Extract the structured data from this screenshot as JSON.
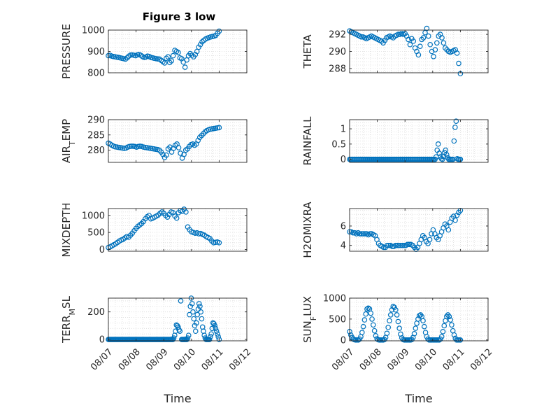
{
  "figure": {
    "title": "Figure 3 low",
    "colors": {
      "marker": "#0072BD",
      "axis": "#262626",
      "grid": "#dcdcdc",
      "background": "#ffffff"
    }
  },
  "chart_data": [
    {
      "type": "scatter",
      "ylabel": "PRESSURE",
      "xlim": [
        0,
        5
      ],
      "ylim": [
        800,
        1000
      ],
      "yticks": [
        800,
        900,
        1000
      ],
      "xticks_labels": [],
      "grid": "on",
      "x_start": 0.0,
      "x_end": 4.0,
      "y": [
        880,
        882,
        878,
        876,
        875,
        873,
        872,
        870,
        868,
        866,
        864,
        870,
        878,
        883,
        884,
        882,
        880,
        884,
        886,
        882,
        876,
        872,
        874,
        878,
        876,
        872,
        870,
        868,
        866,
        865,
        864,
        858,
        852,
        846,
        868,
        875,
        848,
        856,
        880,
        905,
        900,
        895,
        870,
        866,
        850,
        826,
        860,
        880,
        890,
        882,
        875,
        885,
        900,
        920,
        932,
        945,
        952,
        958,
        962,
        965,
        968,
        970,
        972,
        975,
        985,
        995
      ]
    },
    {
      "type": "scatter",
      "ylabel": "THETA",
      "xlim": [
        0,
        5
      ],
      "ylim": [
        287.5,
        292.5
      ],
      "yticks": [
        288,
        290,
        292
      ],
      "xticks_labels": [],
      "grid": "on",
      "x_start": 0.0,
      "x_end": 4.0,
      "y": [
        292.4,
        292.3,
        292.2,
        292.1,
        292.0,
        291.9,
        291.8,
        291.7,
        291.7,
        291.6,
        291.5,
        291.6,
        291.7,
        291.8,
        291.7,
        291.6,
        291.5,
        291.4,
        291.3,
        291.2,
        291.0,
        291.3,
        291.6,
        291.7,
        291.8,
        291.7,
        291.6,
        291.8,
        291.9,
        292.0,
        292.0,
        292.1,
        292.0,
        292.1,
        291.8,
        291.4,
        290.8,
        291.5,
        291.2,
        290.4,
        290.0,
        289.6,
        290.6,
        291.4,
        291.6,
        292.2,
        292.7,
        291.8,
        290.8,
        290.0,
        289.4,
        290.2,
        291.0,
        291.8,
        292.0,
        291.6,
        291.0,
        290.4,
        290.2,
        290.0,
        289.9,
        290.0,
        290.1,
        290.2,
        289.8,
        288.6,
        287.4
      ]
    },
    {
      "type": "scatter",
      "ylabel": "AIR_TEMP",
      "xlim": [
        0,
        5
      ],
      "ylim": [
        276,
        290
      ],
      "yticks": [
        280,
        285,
        290
      ],
      "xticks_labels": [],
      "grid": "on",
      "x_start": 0.0,
      "x_end": 4.0,
      "y": [
        282.3,
        282.0,
        281.6,
        281.3,
        281.1,
        281.0,
        280.9,
        280.8,
        280.7,
        280.6,
        280.7,
        281.0,
        281.2,
        281.3,
        281.3,
        281.2,
        281.0,
        281.2,
        281.3,
        281.2,
        281.0,
        280.9,
        280.8,
        280.7,
        280.6,
        280.5,
        280.4,
        280.3,
        280.2,
        280.0,
        279.4,
        278.6,
        277.6,
        278.4,
        280.4,
        281.0,
        279.4,
        280.6,
        281.6,
        282.0,
        280.8,
        279.0,
        277.4,
        278.6,
        280.0,
        280.4,
        281.2,
        281.8,
        282.0,
        281.6,
        282.0,
        283.2,
        284.2,
        284.8,
        285.4,
        286.0,
        286.4,
        286.7,
        286.9,
        287.0,
        287.1,
        287.2,
        287.3,
        287.4
      ]
    },
    {
      "type": "scatter",
      "ylabel": "RAINFALL",
      "xlim": [
        0,
        5
      ],
      "ylim": [
        -0.1,
        1.3
      ],
      "yticks": [
        0,
        0.5,
        1
      ],
      "xticks_labels": [],
      "grid": "on",
      "x_start": 0.0,
      "x_end": 4.0,
      "y": [
        0,
        0,
        0,
        0,
        0,
        0,
        0,
        0,
        0,
        0,
        0,
        0,
        0,
        0,
        0,
        0,
        0,
        0,
        0,
        0,
        0,
        0,
        0,
        0,
        0,
        0,
        0,
        0,
        0,
        0,
        0,
        0,
        0,
        0,
        0,
        0,
        0,
        0,
        0,
        0,
        0,
        0,
        0,
        0,
        0,
        0,
        0,
        0,
        0,
        0,
        0,
        0,
        0,
        0,
        0,
        0,
        0,
        0,
        0,
        0,
        0,
        0,
        0,
        0,
        0,
        0,
        0,
        0,
        0,
        0,
        0,
        0,
        0,
        0,
        0,
        0,
        0,
        0,
        0,
        0,
        0,
        0,
        0.08,
        0.3,
        0.5,
        0.2,
        0.08,
        0.02,
        0,
        0.1,
        0.22,
        0.3,
        0.15,
        0.05,
        0,
        0,
        0,
        0,
        0,
        0.6,
        1.05,
        1.25,
        0.02,
        0,
        0,
        0
      ]
    },
    {
      "type": "scatter",
      "ylabel": "MIXDEPTH",
      "xlim": [
        0,
        5
      ],
      "ylim": [
        -50,
        1200
      ],
      "yticks": [
        0,
        500,
        1000
      ],
      "xticks_labels": [],
      "grid": "on",
      "x_start": 0.0,
      "x_end": 4.0,
      "y": [
        60,
        80,
        110,
        140,
        170,
        210,
        250,
        280,
        300,
        340,
        380,
        360,
        420,
        480,
        550,
        620,
        680,
        720,
        760,
        820,
        900,
        960,
        1000,
        900,
        920,
        950,
        980,
        1010,
        1060,
        1100,
        1060,
        1000,
        950,
        1030,
        1100,
        1080,
        980,
        920,
        1080,
        1140,
        1120,
        1180,
        1100,
        660,
        580,
        520,
        500,
        480,
        490,
        460,
        470,
        440,
        420,
        380,
        350,
        320,
        250,
        200,
        210,
        220,
        200
      ]
    },
    {
      "type": "scatter",
      "ylabel": "H2OMIXRA",
      "xlim": [
        0,
        5
      ],
      "ylim": [
        3.4,
        7.8
      ],
      "yticks": [
        4,
        6
      ],
      "xticks_labels": [],
      "grid": "on",
      "x_start": 0.0,
      "x_end": 4.0,
      "y": [
        5.4,
        5.4,
        5.3,
        5.3,
        5.2,
        5.3,
        5.2,
        5.2,
        5.2,
        5.2,
        5.2,
        5.1,
        5.2,
        5.2,
        5.1,
        5.0,
        4.6,
        4.2,
        4.0,
        3.9,
        3.8,
        3.8,
        4.0,
        4.0,
        4.0,
        3.9,
        3.9,
        4.0,
        4.0,
        4.0,
        4.0,
        4.0,
        4.0,
        4.0,
        4.1,
        4.1,
        4.1,
        4.0,
        3.8,
        3.6,
        3.8,
        4.2,
        4.6,
        5.0,
        4.8,
        4.4,
        4.2,
        4.6,
        5.2,
        5.6,
        5.2,
        4.8,
        4.6,
        5.0,
        5.4,
        5.8,
        6.2,
        6.0,
        5.6,
        6.4,
        6.8,
        7.0,
        6.6,
        7.1,
        7.4,
        7.6
      ]
    },
    {
      "type": "scatter",
      "ylabel": "TERR_MSL",
      "xlim": [
        0,
        5
      ],
      "ylim": [
        -10,
        300
      ],
      "yticks": [
        0,
        200
      ],
      "xticks_labels": [
        "08/07",
        "08/08",
        "08/09",
        "08/10",
        "08/11",
        "08/12"
      ],
      "xlabel": "Time",
      "grid": "on",
      "x_start": 0.0,
      "x_end": 4.0,
      "y": [
        0,
        0,
        0,
        0,
        0,
        0,
        0,
        0,
        0,
        0,
        0,
        0,
        0,
        0,
        0,
        0,
        0,
        0,
        0,
        0,
        0,
        0,
        0,
        0,
        0,
        0,
        0,
        0,
        0,
        0,
        0,
        0,
        0,
        0,
        0,
        0,
        0,
        0,
        0,
        0,
        0,
        0,
        0,
        0,
        0,
        0,
        0,
        0,
        0,
        0,
        0,
        0,
        0,
        0,
        0,
        0,
        0,
        0,
        0,
        0,
        0,
        0,
        0,
        0,
        0,
        0,
        0,
        0,
        0,
        0,
        0,
        0,
        0,
        0,
        0,
        10,
        30,
        60,
        105,
        100,
        90,
        70,
        60,
        280,
        0,
        0,
        0,
        0,
        0,
        0,
        0,
        10,
        30,
        180,
        240,
        300,
        260,
        200,
        150,
        100,
        60,
        120,
        180,
        220,
        260,
        240,
        200,
        150,
        90,
        60,
        30,
        10,
        0,
        0,
        0,
        0,
        0,
        20,
        40,
        80,
        120,
        115,
        100,
        80,
        60,
        40,
        20,
        0
      ]
    },
    {
      "type": "scatter",
      "ylabel": "SUN_FLUX",
      "xlim": [
        0,
        5
      ],
      "ylim": [
        -20,
        1000
      ],
      "yticks": [
        0,
        500,
        1000
      ],
      "xticks_labels": [
        "08/07",
        "08/08",
        "08/09",
        "08/10",
        "08/11",
        "08/12"
      ],
      "xlabel": "Time",
      "grid": "on",
      "x_start": 0.0,
      "x_end": 4.0,
      "y": [
        200,
        120,
        60,
        20,
        5,
        0,
        0,
        0,
        20,
        80,
        180,
        320,
        480,
        620,
        740,
        760,
        740,
        640,
        500,
        360,
        220,
        100,
        30,
        5,
        0,
        0,
        0,
        0,
        10,
        60,
        160,
        300,
        460,
        600,
        720,
        800,
        780,
        720,
        600,
        440,
        280,
        140,
        50,
        10,
        0,
        0,
        0,
        0,
        0,
        0,
        10,
        60,
        150,
        280,
        400,
        500,
        580,
        600,
        560,
        460,
        320,
        180,
        80,
        20,
        0,
        0,
        0,
        0,
        0,
        0,
        0,
        0,
        0,
        20,
        80,
        200,
        340,
        460,
        560,
        600,
        560,
        480,
        360,
        220,
        120,
        40,
        0,
        0,
        0,
        0
      ]
    }
  ]
}
